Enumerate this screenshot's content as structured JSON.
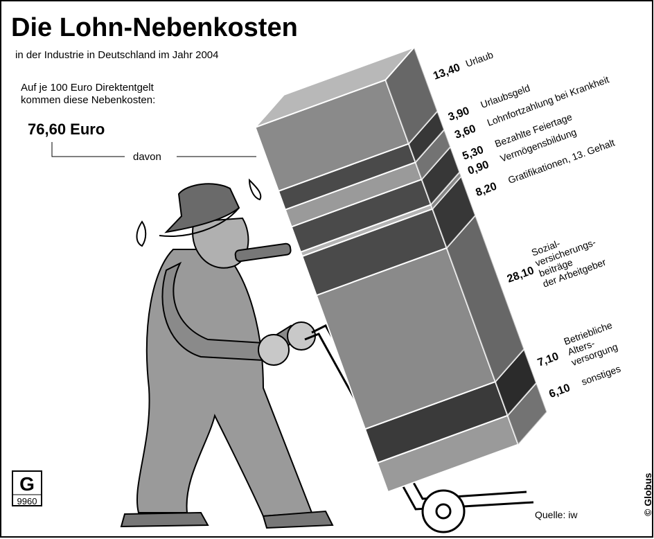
{
  "title": "Die Lohn-Nebenkosten",
  "subtitle": "in der Industrie in Deutschland im Jahr 2004",
  "intro": [
    "Auf je 100 Euro Direktentgelt",
    "kommen diese Nebenkosten:"
  ],
  "davon": "davon",
  "source": "Quelle: iw",
  "credit": "© Globus",
  "logo": "G",
  "code": "9960",
  "chart_data": {
    "type": "stacked-block",
    "total": {
      "value": 76.6,
      "label": "76,60 Euro"
    },
    "categories": [
      [
        "Urlaub"
      ],
      [
        "Urlaubsgeld"
      ],
      [
        "Lohnfortzahlung bei Krankheit"
      ],
      [
        "Bezahlte Feiertage"
      ],
      [
        "Vermögensbildung"
      ],
      [
        "Gratifikationen, 13. Gehalt"
      ],
      [
        "Sozial-",
        "versicherungs-",
        "beiträge",
        "der Arbeitgeber"
      ],
      [
        "Betriebliche",
        "Alters-",
        "versorgung"
      ],
      [
        "sonstiges"
      ]
    ],
    "values": [
      13.4,
      3.9,
      3.6,
      5.3,
      0.9,
      8.2,
      28.1,
      7.1,
      6.1
    ],
    "value_labels": [
      "13,40",
      "3,90",
      "3,60",
      "5,30",
      "0,90",
      "8,20",
      "28,10",
      "7,10",
      "6,10"
    ],
    "colors": [
      "#8a8a8a",
      "#4a4a4a",
      "#9a9a9a",
      "#4a4a4a",
      "#b4b4b4",
      "#4a4a4a",
      "#8a8a8a",
      "#3a3a3a",
      "#9a9a9a"
    ]
  }
}
